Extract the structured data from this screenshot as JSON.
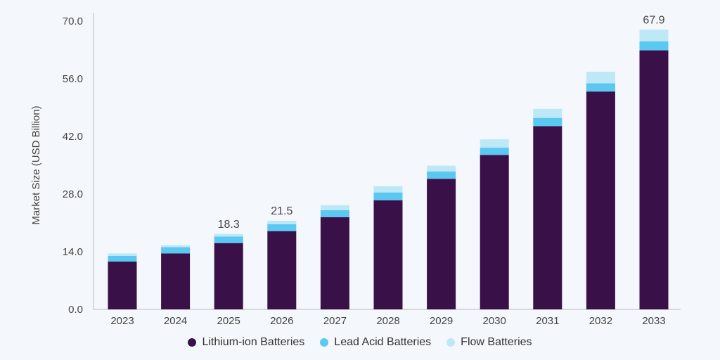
{
  "chart_data": {
    "type": "bar",
    "stacked": true,
    "title": "",
    "xlabel": "",
    "ylabel": "Market Size (USD Billion)",
    "ylim": [
      0,
      70
    ],
    "yticks": [
      "0.0",
      "14.0",
      "28.0",
      "42.0",
      "56.0",
      "70.0"
    ],
    "grid": false,
    "legend_position": "bottom",
    "categories": [
      "2023",
      "2024",
      "2025",
      "2026",
      "2027",
      "2028",
      "2029",
      "2030",
      "2031",
      "2032",
      "2033"
    ],
    "series": [
      {
        "name": "Lithium-ion Batteries",
        "color": "#3a1048",
        "values": [
          11.6,
          13.6,
          16.1,
          19.0,
          22.4,
          26.5,
          31.7,
          37.5,
          44.5,
          52.9,
          62.9
        ]
      },
      {
        "name": "Lead Acid Batteries",
        "color": "#5ac8f0",
        "values": [
          1.4,
          1.5,
          1.6,
          1.7,
          1.7,
          1.9,
          1.8,
          1.8,
          2.0,
          2.0,
          2.2
        ]
      },
      {
        "name": "Flow Batteries",
        "color": "#bfe8f7",
        "values": [
          0.6,
          0.5,
          0.6,
          0.8,
          1.2,
          1.5,
          1.4,
          2.0,
          2.2,
          2.8,
          2.8
        ]
      }
    ],
    "data_labels": [
      {
        "category": "2025",
        "text": "18.3"
      },
      {
        "category": "2026",
        "text": "21.5"
      },
      {
        "category": "2033",
        "text": "67.9"
      }
    ]
  }
}
